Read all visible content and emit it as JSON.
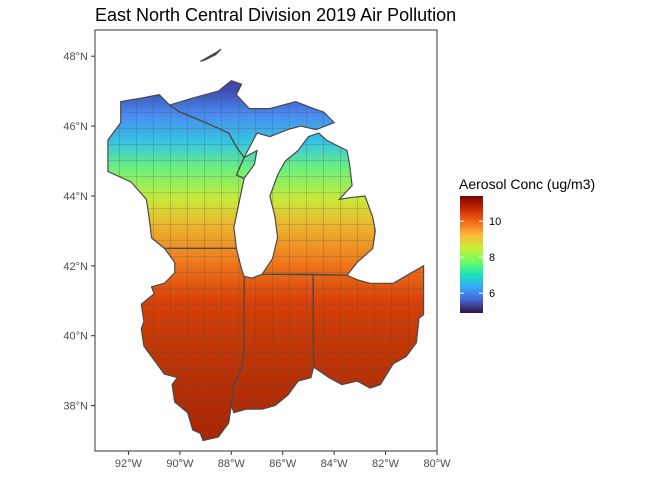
{
  "title": "East North Central Division 2019 Air Pollution",
  "legend": {
    "title": "Aerosol Conc (ug/m3)",
    "ticks": [
      {
        "value": 6,
        "label": "6"
      },
      {
        "value": 8,
        "label": "8"
      },
      {
        "value": 10,
        "label": "10"
      }
    ],
    "range": [
      4.9,
      11.4
    ],
    "colormap": "turbo",
    "gradient_colors": [
      "#30123b",
      "#4662d7",
      "#36aaf9",
      "#1ae4b6",
      "#72fe5e",
      "#c7ef34",
      "#fbb938",
      "#f56918",
      "#c92903",
      "#7a0403"
    ]
  },
  "axes": {
    "x_ticks": [
      {
        "value": -92,
        "label": "92°W"
      },
      {
        "value": -90,
        "label": "90°W"
      },
      {
        "value": -88,
        "label": "88°W"
      },
      {
        "value": -86,
        "label": "86°W"
      },
      {
        "value": -84,
        "label": "84°W"
      },
      {
        "value": -82,
        "label": "82°W"
      },
      {
        "value": -80,
        "label": "80°W"
      }
    ],
    "y_ticks": [
      {
        "value": 38,
        "label": "38°N"
      },
      {
        "value": 40,
        "label": "40°N"
      },
      {
        "value": 42,
        "label": "42°N"
      },
      {
        "value": 44,
        "label": "44°N"
      },
      {
        "value": 46,
        "label": "46°N"
      },
      {
        "value": 48,
        "label": "48°N"
      }
    ],
    "x_range": [
      -93.3,
      -80.0
    ],
    "y_range": [
      36.7,
      48.75
    ]
  },
  "panel": {
    "background": "#ffffff",
    "border": "#333333",
    "county_stroke": "#4a4a4a",
    "lake_color": "#ffffff"
  },
  "regions": [
    {
      "name": "Illinois",
      "points": [
        [
          -91.4,
          40.4
        ],
        [
          -91.5,
          40.9
        ],
        [
          -91.0,
          41.2
        ],
        [
          -91.1,
          41.4
        ],
        [
          -90.6,
          41.5
        ],
        [
          -90.2,
          41.8
        ],
        [
          -90.2,
          42.1
        ],
        [
          -90.6,
          42.5
        ],
        [
          -87.8,
          42.5
        ],
        [
          -87.6,
          41.9
        ],
        [
          -87.5,
          41.7
        ],
        [
          -87.5,
          39.5
        ],
        [
          -87.6,
          39.1
        ],
        [
          -87.9,
          38.6
        ],
        [
          -88.0,
          38.0
        ],
        [
          -88.1,
          37.5
        ],
        [
          -88.5,
          37.1
        ],
        [
          -89.1,
          37.0
        ],
        [
          -89.2,
          37.2
        ],
        [
          -89.5,
          37.3
        ],
        [
          -89.7,
          37.8
        ],
        [
          -90.2,
          38.1
        ],
        [
          -90.3,
          38.6
        ],
        [
          -90.1,
          38.8
        ],
        [
          -90.6,
          38.9
        ],
        [
          -90.9,
          39.2
        ],
        [
          -91.4,
          39.7
        ],
        [
          -91.5,
          40.2
        ]
      ]
    },
    {
      "name": "Indiana",
      "points": [
        [
          -87.5,
          41.7
        ],
        [
          -87.2,
          41.65
        ],
        [
          -86.8,
          41.76
        ],
        [
          -84.82,
          41.76
        ],
        [
          -84.8,
          39.1
        ],
        [
          -84.9,
          38.8
        ],
        [
          -85.4,
          38.7
        ],
        [
          -85.8,
          38.3
        ],
        [
          -86.3,
          38.0
        ],
        [
          -86.8,
          37.9
        ],
        [
          -87.4,
          37.9
        ],
        [
          -87.9,
          37.8
        ],
        [
          -88.0,
          38.0
        ],
        [
          -87.9,
          38.6
        ],
        [
          -87.6,
          39.1
        ],
        [
          -87.5,
          39.5
        ]
      ]
    },
    {
      "name": "Ohio",
      "points": [
        [
          -84.82,
          41.76
        ],
        [
          -83.5,
          41.73
        ],
        [
          -83.1,
          41.6
        ],
        [
          -82.6,
          41.5
        ],
        [
          -81.7,
          41.5
        ],
        [
          -81.0,
          41.8
        ],
        [
          -80.52,
          42.0
        ],
        [
          -80.52,
          40.6
        ],
        [
          -80.7,
          40.5
        ],
        [
          -80.8,
          39.8
        ],
        [
          -81.2,
          39.4
        ],
        [
          -81.7,
          39.2
        ],
        [
          -82.2,
          38.6
        ],
        [
          -82.6,
          38.5
        ],
        [
          -83.1,
          38.7
        ],
        [
          -83.7,
          38.6
        ],
        [
          -84.2,
          38.8
        ],
        [
          -84.8,
          39.1
        ]
      ]
    },
    {
      "name": "Lower Michigan",
      "points": [
        [
          -86.8,
          41.76
        ],
        [
          -86.4,
          42.2
        ],
        [
          -86.2,
          42.8
        ],
        [
          -86.3,
          43.4
        ],
        [
          -86.5,
          44.0
        ],
        [
          -86.2,
          44.6
        ],
        [
          -85.9,
          45.0
        ],
        [
          -85.4,
          45.3
        ],
        [
          -85.0,
          45.7
        ],
        [
          -84.6,
          45.8
        ],
        [
          -84.3,
          45.6
        ],
        [
          -83.5,
          45.3
        ],
        [
          -83.4,
          44.9
        ],
        [
          -83.3,
          44.3
        ],
        [
          -83.8,
          43.9
        ],
        [
          -83.4,
          43.95
        ],
        [
          -82.8,
          44.0
        ],
        [
          -82.5,
          43.4
        ],
        [
          -82.4,
          43.0
        ],
        [
          -82.5,
          42.5
        ],
        [
          -83.1,
          42.1
        ],
        [
          -83.5,
          41.73
        ]
      ]
    },
    {
      "name": "Upper Michigan",
      "points": [
        [
          -90.4,
          46.6
        ],
        [
          -89.5,
          46.8
        ],
        [
          -88.5,
          47.0
        ],
        [
          -88.0,
          47.3
        ],
        [
          -87.6,
          47.2
        ],
        [
          -87.8,
          46.9
        ],
        [
          -87.3,
          46.5
        ],
        [
          -86.5,
          46.5
        ],
        [
          -85.5,
          46.7
        ],
        [
          -84.8,
          46.5
        ],
        [
          -84.4,
          46.4
        ],
        [
          -84.0,
          46.1
        ],
        [
          -84.7,
          45.9
        ],
        [
          -85.3,
          46.0
        ],
        [
          -85.8,
          45.9
        ],
        [
          -86.5,
          45.7
        ],
        [
          -87.0,
          45.8
        ],
        [
          -87.5,
          45.1
        ],
        [
          -87.8,
          45.4
        ],
        [
          -88.1,
          45.8
        ],
        [
          -89.0,
          46.1
        ],
        [
          -90.0,
          46.4
        ]
      ]
    },
    {
      "name": "Wisconsin",
      "points": [
        [
          -90.6,
          42.5
        ],
        [
          -91.1,
          42.8
        ],
        [
          -91.2,
          43.4
        ],
        [
          -91.3,
          43.9
        ],
        [
          -91.9,
          44.4
        ],
        [
          -92.8,
          44.7
        ],
        [
          -92.8,
          45.6
        ],
        [
          -92.3,
          46.1
        ],
        [
          -92.3,
          46.7
        ],
        [
          -91.5,
          46.8
        ],
        [
          -90.8,
          46.9
        ],
        [
          -90.4,
          46.6
        ],
        [
          -90.0,
          46.4
        ],
        [
          -89.0,
          46.1
        ],
        [
          -88.1,
          45.8
        ],
        [
          -87.8,
          45.4
        ],
        [
          -87.5,
          45.1
        ],
        [
          -87.8,
          44.6
        ],
        [
          -87.5,
          44.5
        ],
        [
          -87.7,
          43.8
        ],
        [
          -87.9,
          43.1
        ],
        [
          -87.8,
          42.5
        ]
      ]
    },
    {
      "name": "Door Peninsula",
      "points": [
        [
          -87.5,
          45.1
        ],
        [
          -87.0,
          45.3
        ],
        [
          -87.1,
          44.9
        ],
        [
          -87.5,
          44.5
        ],
        [
          -87.8,
          44.6
        ]
      ]
    },
    {
      "name": "Isle Royale",
      "points": [
        [
          -89.2,
          47.85
        ],
        [
          -88.6,
          48.1
        ],
        [
          -88.4,
          48.2
        ],
        [
          -88.6,
          48.05
        ],
        [
          -89.0,
          47.9
        ]
      ]
    }
  ]
}
